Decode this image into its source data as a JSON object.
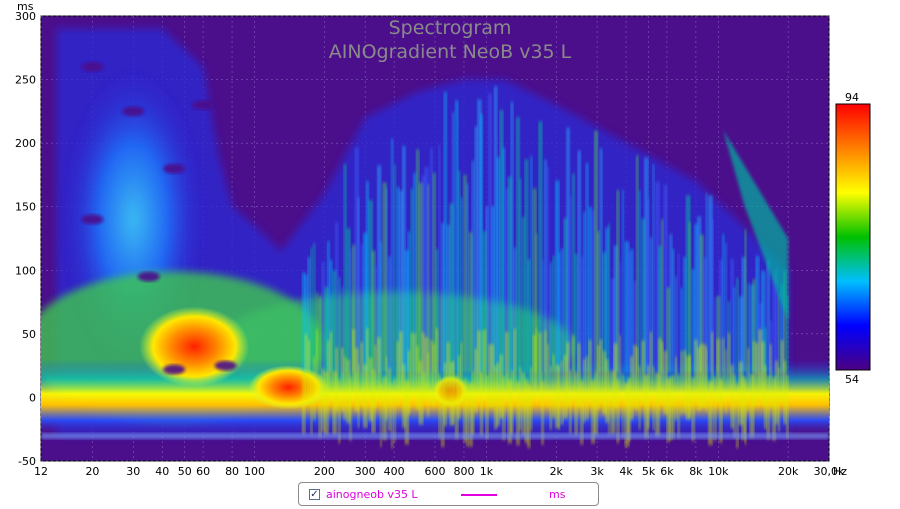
{
  "chart_data": {
    "type": "heatmap",
    "title": "Spectrogram",
    "subtitle": "AINOgradient NeoB v35 L",
    "xlabel": "Hz",
    "ylabel": "ms",
    "x_scale": "log",
    "xlim": [
      12,
      30000
    ],
    "ylim": [
      -50,
      300
    ],
    "x_ticks": [
      {
        "value": 12,
        "label": "12"
      },
      {
        "value": 20,
        "label": "20"
      },
      {
        "value": 30,
        "label": "30"
      },
      {
        "value": 40,
        "label": "40"
      },
      {
        "value": 50,
        "label": "50"
      },
      {
        "value": 60,
        "label": "60"
      },
      {
        "value": 80,
        "label": "80"
      },
      {
        "value": 100,
        "label": "100"
      },
      {
        "value": 200,
        "label": "200"
      },
      {
        "value": 300,
        "label": "300"
      },
      {
        "value": 400,
        "label": "400"
      },
      {
        "value": 600,
        "label": "600"
      },
      {
        "value": 800,
        "label": "800"
      },
      {
        "value": 1000,
        "label": "1k"
      },
      {
        "value": 2000,
        "label": "2k"
      },
      {
        "value": 3000,
        "label": "3k"
      },
      {
        "value": 4000,
        "label": "4k"
      },
      {
        "value": 5000,
        "label": "5k"
      },
      {
        "value": 6000,
        "label": "6k"
      },
      {
        "value": 8000,
        "label": "8k"
      },
      {
        "value": 10000,
        "label": "10k"
      },
      {
        "value": 20000,
        "label": "20k"
      },
      {
        "value": 30000,
        "label": "30,0k"
      }
    ],
    "y_ticks": [
      {
        "value": -50,
        "label": "-50"
      },
      {
        "value": 0,
        "label": "0"
      },
      {
        "value": 50,
        "label": "50"
      },
      {
        "value": 100,
        "label": "100"
      },
      {
        "value": 150,
        "label": "150"
      },
      {
        "value": 200,
        "label": "200"
      },
      {
        "value": 250,
        "label": "250"
      },
      {
        "value": 300,
        "label": "300"
      }
    ],
    "colorbar": {
      "min": 54,
      "max": 94,
      "min_label": "54",
      "max_label": "94",
      "colors": [
        "#4b0082",
        "#0000ff",
        "#00bfff",
        "#00c000",
        "#ffff00",
        "#ff8000",
        "#ff0000"
      ]
    },
    "background_color": "#4b0f8c",
    "grid": true,
    "decay_envelope": [
      {
        "hz": 14,
        "ms": 290
      },
      {
        "hz": 40,
        "ms": 290
      },
      {
        "hz": 60,
        "ms": 260
      },
      {
        "hz": 70,
        "ms": 190
      },
      {
        "hz": 80,
        "ms": 150
      },
      {
        "hz": 100,
        "ms": 135
      },
      {
        "hz": 130,
        "ms": 115
      },
      {
        "hz": 200,
        "ms": 160
      },
      {
        "hz": 300,
        "ms": 220
      },
      {
        "hz": 500,
        "ms": 240
      },
      {
        "hz": 800,
        "ms": 250
      },
      {
        "hz": 1200,
        "ms": 250
      },
      {
        "hz": 2000,
        "ms": 230
      },
      {
        "hz": 4000,
        "ms": 200
      },
      {
        "hz": 8000,
        "ms": 170
      },
      {
        "hz": 12000,
        "ms": 140
      },
      {
        "hz": 20000,
        "ms": 100
      }
    ]
  },
  "legend": {
    "series_name": "ainogneob v35 L",
    "unit": "ms",
    "checked": true,
    "line_color": "#e000e0"
  }
}
